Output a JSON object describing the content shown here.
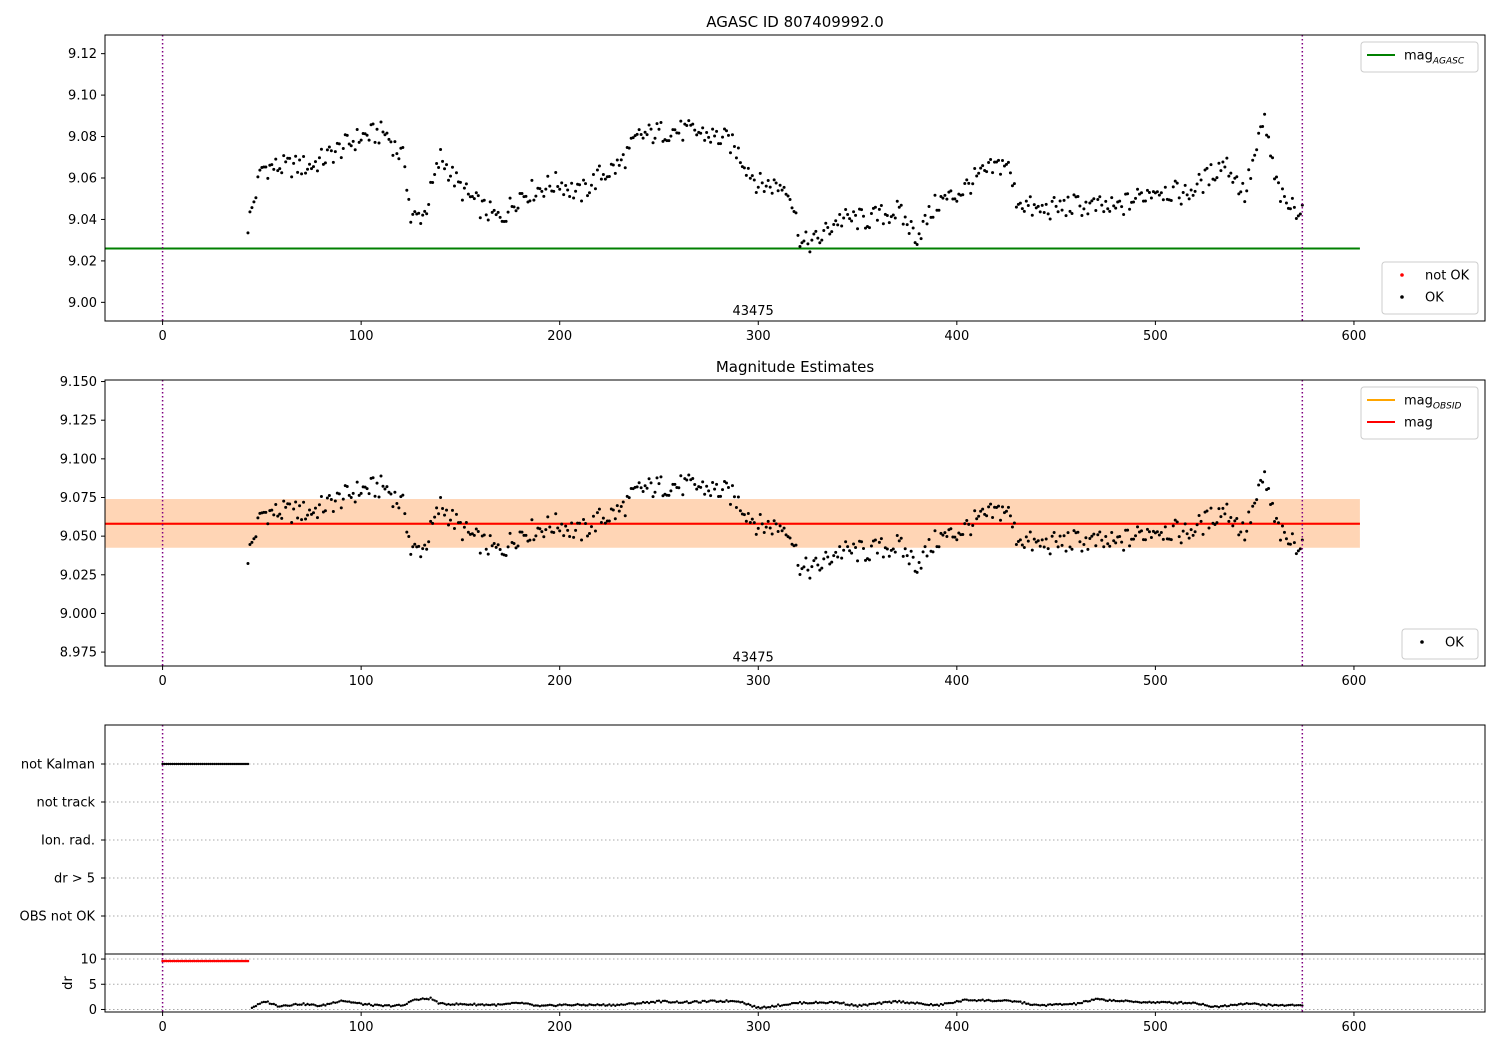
{
  "chart_data": [
    {
      "type": "scatter",
      "title": "AGASC ID 807409992.0",
      "xlim": [
        -29,
        666
      ],
      "ylim": [
        8.991,
        9.129
      ],
      "x_ticks": [
        0,
        100,
        200,
        300,
        400,
        500,
        600
      ],
      "y_ticks": [
        9.0,
        9.02,
        9.04,
        9.06,
        9.08,
        9.1,
        9.12
      ],
      "y_tick_decimals": 2,
      "grid": false,
      "obsid_label": {
        "text": "43475",
        "x": 287,
        "y": 8.994
      },
      "vlines": [
        0,
        574
      ],
      "series": [
        {
          "name": "mag_AGASC",
          "kind": "hline",
          "y": 9.026,
          "x_range": [
            -29,
            603
          ],
          "color": "#008000"
        },
        {
          "name": "not OK",
          "kind": "scatter",
          "color": "#ff0000",
          "points": []
        },
        {
          "name": "OK",
          "kind": "scatter",
          "color": "#000000",
          "x_range": [
            43,
            574
          ],
          "y_profile": [
            [
              43,
              9.037
            ],
            [
              50,
              9.065
            ],
            [
              75,
              9.066
            ],
            [
              100,
              9.08
            ],
            [
              112,
              9.082
            ],
            [
              122,
              9.068
            ],
            [
              125,
              9.04
            ],
            [
              132,
              9.043
            ],
            [
              140,
              9.07
            ],
            [
              150,
              9.055
            ],
            [
              160,
              9.046
            ],
            [
              170,
              9.04
            ],
            [
              180,
              9.052
            ],
            [
              200,
              9.058
            ],
            [
              210,
              9.052
            ],
            [
              220,
              9.061
            ],
            [
              230,
              9.066
            ],
            [
              240,
              9.08
            ],
            [
              255,
              9.083
            ],
            [
              270,
              9.082
            ],
            [
              285,
              9.078
            ],
            [
              290,
              9.072
            ],
            [
              300,
              9.057
            ],
            [
              315,
              9.056
            ],
            [
              322,
              9.028
            ],
            [
              330,
              9.03
            ],
            [
              340,
              9.04
            ],
            [
              355,
              9.04
            ],
            [
              370,
              9.044
            ],
            [
              380,
              9.032
            ],
            [
              390,
              9.048
            ],
            [
              400,
              9.052
            ],
            [
              410,
              9.06
            ],
            [
              425,
              9.068
            ],
            [
              430,
              9.05
            ],
            [
              440,
              9.044
            ],
            [
              460,
              9.047
            ],
            [
              480,
              9.045
            ],
            [
              500,
              9.055
            ],
            [
              515,
              9.052
            ],
            [
              525,
              9.059
            ],
            [
              535,
              9.068
            ],
            [
              545,
              9.052
            ],
            [
              555,
              9.088
            ],
            [
              560,
              9.06
            ],
            [
              565,
              9.047
            ],
            [
              574,
              9.045
            ]
          ]
        }
      ],
      "legends": [
        {
          "placement": "upper right",
          "entries": [
            {
              "label": "mag",
              "sub": "AGASC",
              "color": "#008000",
              "kind": "line"
            }
          ]
        },
        {
          "placement": "lower right",
          "entries": [
            {
              "label": "not OK",
              "color": "#ff0000",
              "kind": "dot"
            },
            {
              "label": "OK",
              "color": "#000000",
              "kind": "dot"
            }
          ]
        }
      ]
    },
    {
      "type": "scatter",
      "title": "Magnitude Estimates",
      "xlim": [
        -29,
        666
      ],
      "ylim": [
        8.966,
        9.151
      ],
      "x_ticks": [
        0,
        100,
        200,
        300,
        400,
        500,
        600
      ],
      "y_ticks": [
        8.975,
        9.0,
        9.025,
        9.05,
        9.075,
        9.1,
        9.125,
        9.15
      ],
      "y_tick_decimals": 3,
      "grid": false,
      "obsid_label": {
        "text": "43475",
        "x": 287,
        "y": 8.969
      },
      "vlines": [
        0,
        574
      ],
      "bands": [
        {
          "x_range": [
            -29,
            603
          ],
          "y_range": [
            9.0425,
            9.074
          ],
          "color": "#ffc0cb",
          "opacity": 0.45
        },
        {
          "x_range": [
            -29,
            603
          ],
          "y_range": [
            9.0425,
            9.074
          ],
          "color": "#ffa500",
          "opacity": 0.22
        }
      ],
      "series": [
        {
          "name": "mag_OBSID",
          "kind": "hline",
          "y": 9.058,
          "x_range": [
            -29,
            603
          ],
          "color": "#ffa500"
        },
        {
          "name": "mag",
          "kind": "hline",
          "y": 9.058,
          "x_range": [
            -29,
            603
          ],
          "color": "#ff0000"
        },
        {
          "name": "OK",
          "kind": "scatter",
          "color": "#000000",
          "x_range": [
            43,
            574
          ],
          "y_profile": [
            [
              43,
              9.037
            ],
            [
              50,
              9.065
            ],
            [
              75,
              9.066
            ],
            [
              100,
              9.08
            ],
            [
              112,
              9.082
            ],
            [
              122,
              9.068
            ],
            [
              125,
              9.04
            ],
            [
              132,
              9.043
            ],
            [
              140,
              9.07
            ],
            [
              150,
              9.055
            ],
            [
              160,
              9.046
            ],
            [
              170,
              9.04
            ],
            [
              180,
              9.052
            ],
            [
              200,
              9.058
            ],
            [
              210,
              9.052
            ],
            [
              220,
              9.061
            ],
            [
              230,
              9.066
            ],
            [
              240,
              9.08
            ],
            [
              255,
              9.083
            ],
            [
              270,
              9.082
            ],
            [
              285,
              9.078
            ],
            [
              290,
              9.072
            ],
            [
              300,
              9.057
            ],
            [
              315,
              9.056
            ],
            [
              322,
              9.028
            ],
            [
              330,
              9.03
            ],
            [
              340,
              9.04
            ],
            [
              355,
              9.04
            ],
            [
              370,
              9.044
            ],
            [
              380,
              9.032
            ],
            [
              390,
              9.048
            ],
            [
              400,
              9.052
            ],
            [
              410,
              9.06
            ],
            [
              425,
              9.068
            ],
            [
              430,
              9.05
            ],
            [
              440,
              9.044
            ],
            [
              460,
              9.047
            ],
            [
              480,
              9.045
            ],
            [
              500,
              9.055
            ],
            [
              515,
              9.052
            ],
            [
              525,
              9.059
            ],
            [
              535,
              9.068
            ],
            [
              545,
              9.052
            ],
            [
              555,
              9.088
            ],
            [
              560,
              9.06
            ],
            [
              565,
              9.047
            ],
            [
              574,
              9.045
            ]
          ]
        }
      ],
      "legends": [
        {
          "placement": "upper right",
          "entries": [
            {
              "label": "mag",
              "sub": "OBSID",
              "color": "#ffa500",
              "kind": "line"
            },
            {
              "label": "mag",
              "color": "#ff0000",
              "kind": "line"
            }
          ]
        },
        {
          "placement": "lower right",
          "entries": [
            {
              "label": "OK",
              "color": "#000000",
              "kind": "dot"
            }
          ]
        }
      ]
    },
    {
      "type": "scatter",
      "title": "",
      "xlim": [
        -29,
        666
      ],
      "categories": [
        "not Kalman",
        "not track",
        "Ion. rad.",
        "dr > 5",
        "OBS not OK"
      ],
      "grid": "horizontal dotted",
      "vlines": [
        0,
        574
      ],
      "series": [
        {
          "name": "not Kalman",
          "kind": "flag",
          "color": "#000000",
          "x_range": [
            0,
            43
          ]
        },
        {
          "name": "not track",
          "kind": "flag",
          "color": "#000000",
          "x_range": []
        },
        {
          "name": "Ion. rad.",
          "kind": "flag",
          "color": "#000000",
          "x_range": []
        },
        {
          "name": "dr > 5",
          "kind": "flag",
          "color": "#000000",
          "x_range": []
        },
        {
          "name": "OBS not OK",
          "kind": "flag",
          "color": "#000000",
          "x_range": []
        }
      ]
    },
    {
      "type": "scatter",
      "title": "",
      "ylabel": "dr",
      "xlim": [
        -29,
        666
      ],
      "ylim": [
        -0.5,
        11
      ],
      "x_ticks": [
        0,
        100,
        200,
        300,
        400,
        500,
        600
      ],
      "y_ticks": [
        0,
        5,
        10
      ],
      "grid": "horizontal dotted",
      "vlines": [
        0,
        574
      ],
      "series": [
        {
          "name": "dr not Kalman",
          "kind": "flat",
          "color": "#ff0000",
          "y": 9.6,
          "x_range": [
            0,
            43
          ]
        },
        {
          "name": "dr",
          "kind": "scatter",
          "color": "#000000",
          "x_range": [
            45,
            574
          ],
          "y_profile": [
            [
              45,
              0.4
            ],
            [
              52,
              1.6
            ],
            [
              58,
              0.7
            ],
            [
              70,
              1.1
            ],
            [
              80,
              0.7
            ],
            [
              90,
              1.8
            ],
            [
              100,
              1.1
            ],
            [
              110,
              0.7
            ],
            [
              122,
              0.8
            ],
            [
              125,
              1.8
            ],
            [
              135,
              2.2
            ],
            [
              140,
              1.1
            ],
            [
              170,
              0.9
            ],
            [
              180,
              1.3
            ],
            [
              190,
              0.6
            ],
            [
              200,
              0.9
            ],
            [
              230,
              0.9
            ],
            [
              250,
              1.6
            ],
            [
              265,
              1.4
            ],
            [
              275,
              1.6
            ],
            [
              290,
              1.7
            ],
            [
              300,
              0.3
            ],
            [
              320,
              1.3
            ],
            [
              340,
              1.4
            ],
            [
              350,
              0.7
            ],
            [
              370,
              1.6
            ],
            [
              390,
              0.8
            ],
            [
              405,
              1.9
            ],
            [
              430,
              1.6
            ],
            [
              440,
              0.8
            ],
            [
              460,
              1.1
            ],
            [
              470,
              2.0
            ],
            [
              490,
              1.5
            ],
            [
              500,
              1.4
            ],
            [
              520,
              1.3
            ],
            [
              530,
              0.5
            ],
            [
              545,
              1.2
            ],
            [
              560,
              0.8
            ],
            [
              574,
              0.9
            ]
          ]
        }
      ]
    }
  ]
}
